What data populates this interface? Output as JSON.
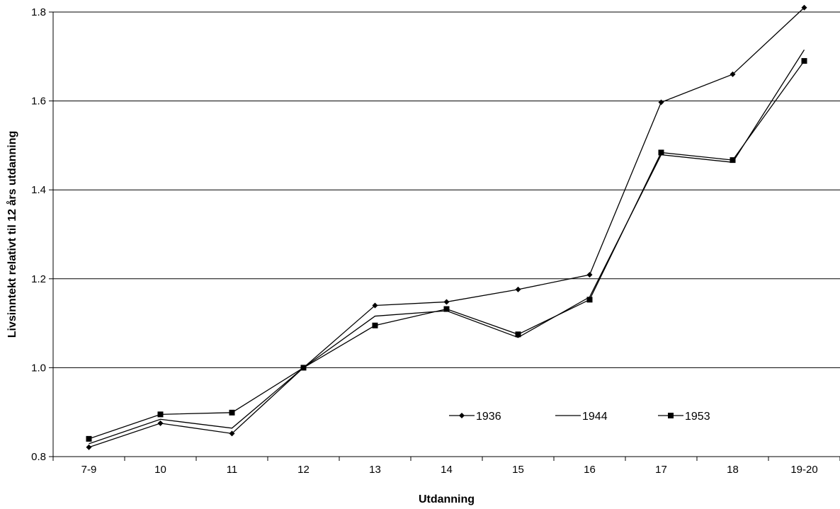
{
  "chart_data": {
    "type": "line",
    "xlabel": "Utdanning",
    "ylabel": "Livsinntekt relativt til 12 års utdanning",
    "categories": [
      "7-9",
      "10",
      "11",
      "12",
      "13",
      "14",
      "15",
      "16",
      "17",
      "18",
      "19-20"
    ],
    "ylim": [
      0.8,
      1.8
    ],
    "yticks": [
      "0.8",
      "1.0",
      "1.2",
      "1.4",
      "1.6",
      "1.8"
    ],
    "grid": "horizontal",
    "legend_position": "inside-bottom-right",
    "series": [
      {
        "name": "1936",
        "marker": "diamond",
        "values": [
          0.821,
          0.875,
          0.852,
          1.0,
          1.14,
          1.148,
          1.176,
          1.209,
          1.597,
          1.66,
          1.81
        ]
      },
      {
        "name": "1944",
        "marker": "none",
        "values": [
          0.829,
          0.884,
          0.864,
          1.0,
          1.116,
          1.128,
          1.068,
          1.159,
          1.479,
          1.462,
          1.715
        ]
      },
      {
        "name": "1953",
        "marker": "square",
        "values": [
          0.84,
          0.895,
          0.899,
          1.0,
          1.095,
          1.132,
          1.075,
          1.153,
          1.484,
          1.467,
          1.69
        ]
      }
    ]
  }
}
